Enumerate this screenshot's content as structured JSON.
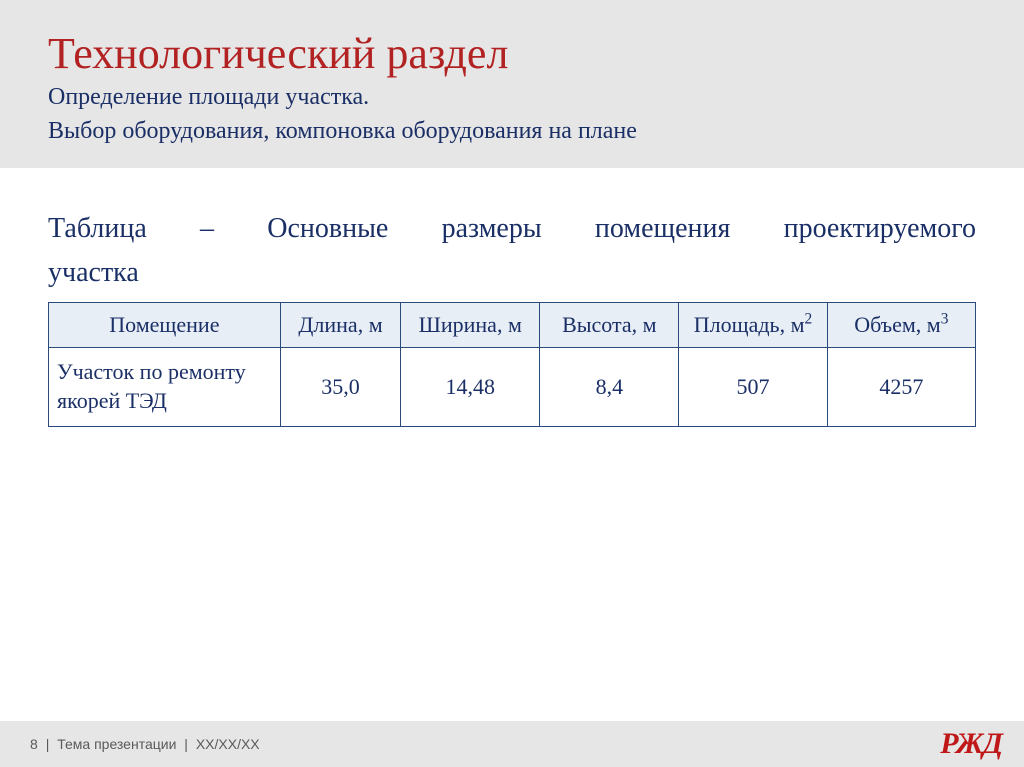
{
  "colors": {
    "title": "#b22222",
    "subtitle": "#1a2f66",
    "caption": "#1a2f66",
    "table_border": "#2a4a7a",
    "table_header_bg": "#e8eef6",
    "table_text": "#1a2f66",
    "header_band_bg": "#e6e6e6",
    "footer_bg": "#e6e6e6",
    "footer_text": "#5a5a5a",
    "logo": "#c01718"
  },
  "header": {
    "title": "Технологический раздел",
    "subtitle_line1": "Определение площади участка.",
    "subtitle_line2": "Выбор оборудования, компоновка оборудования на плане"
  },
  "caption": {
    "line1": "Таблица – Основные размеры помещения проектируемого",
    "line2": "участка"
  },
  "table": {
    "columns": [
      {
        "label": "Помещение",
        "sup": "",
        "width": "25%"
      },
      {
        "label": "Длина, м",
        "sup": "",
        "width": "13%"
      },
      {
        "label": "Ширина, м",
        "sup": "",
        "width": "15%"
      },
      {
        "label": "Высота, м",
        "sup": "",
        "width": "15%"
      },
      {
        "label": "Площадь, м",
        "sup": "2",
        "width": "16%"
      },
      {
        "label": "Объем, м",
        "sup": "3",
        "width": "16%"
      }
    ],
    "rows": [
      {
        "label": "Участок по ремонту якорей ТЭД",
        "values": [
          "35,0",
          "14,48",
          "8,4",
          "507",
          "4257"
        ]
      }
    ]
  },
  "footer": {
    "page": "8",
    "sep": " | ",
    "topic": "Тема презентации",
    "date": "XX/XX/XX",
    "logo_text": "РЖД"
  }
}
